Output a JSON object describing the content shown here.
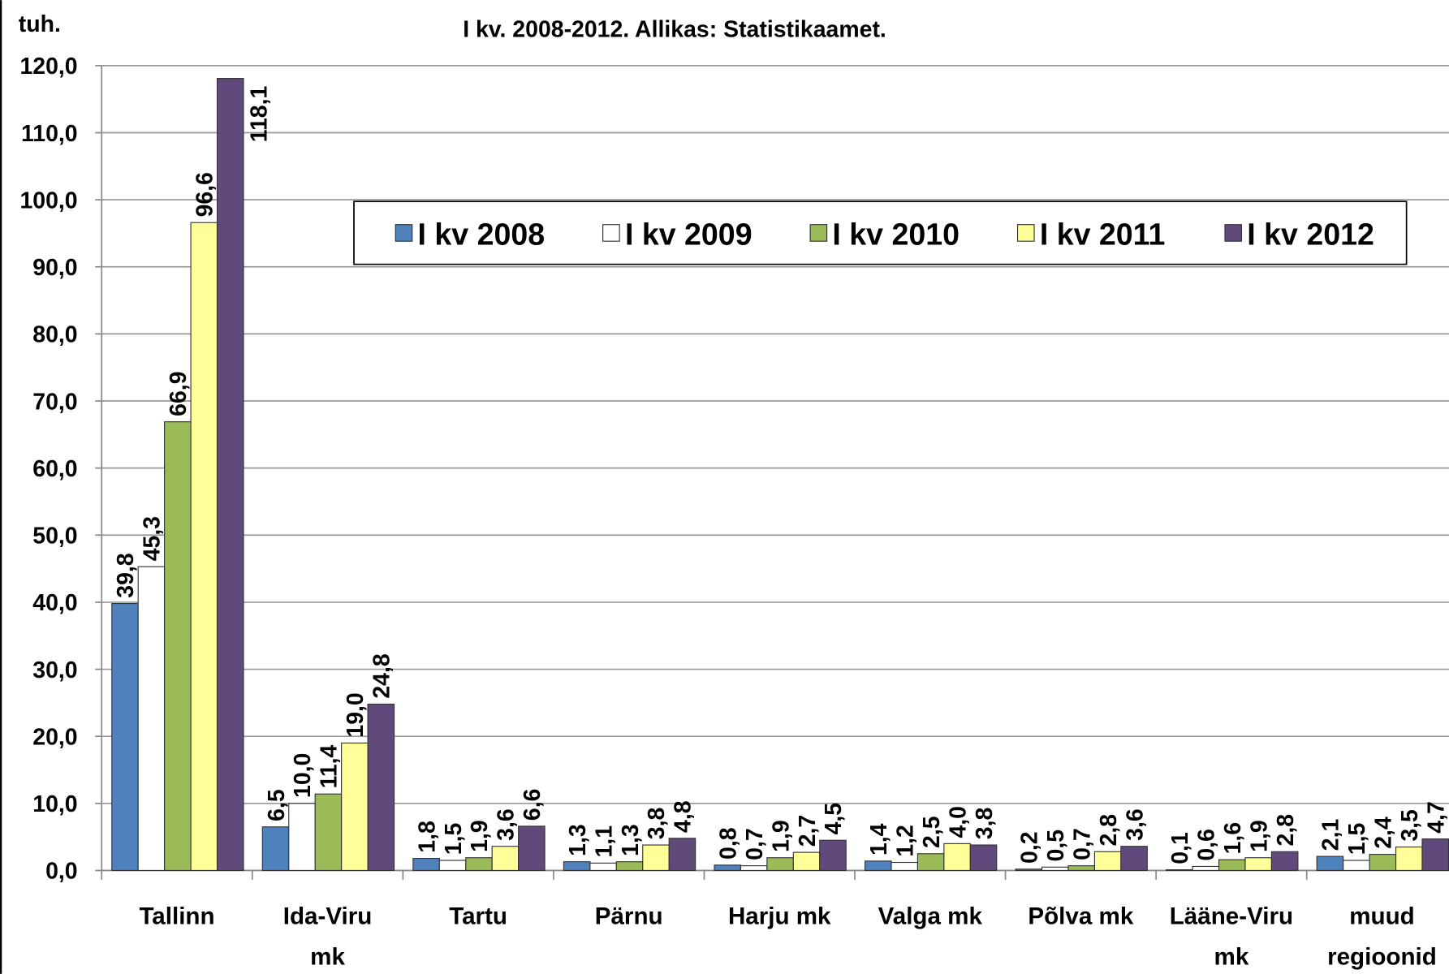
{
  "chart_data": {
    "type": "bar",
    "title": "I kv. 2008-2012.  Allikas: Statistikaamet.",
    "y_label": "tuh.",
    "categories": [
      [
        "Tallinn"
      ],
      [
        "Ida-Viru",
        "mk"
      ],
      [
        "Tartu"
      ],
      [
        "Pärnu"
      ],
      [
        "Harju mk"
      ],
      [
        "Valga mk"
      ],
      [
        "Põlva mk"
      ],
      [
        "Lääne-Viru",
        "mk"
      ],
      [
        "muud",
        "regioonid"
      ]
    ],
    "series": [
      {
        "name": "I kv 2008",
        "color": "#4f81bd",
        "values": [
          39.8,
          6.5,
          1.8,
          1.3,
          0.8,
          1.4,
          0.2,
          0.1,
          2.1
        ],
        "value_labels": [
          "39,8",
          "6,5",
          "1,8",
          "1,3",
          "0,8",
          "1,4",
          "0,2",
          "0,1",
          "2,1"
        ]
      },
      {
        "name": "I kv 2009",
        "color": "#ffffff",
        "values": [
          45.3,
          10.0,
          1.5,
          1.1,
          0.7,
          1.2,
          0.5,
          0.6,
          1.5
        ],
        "value_labels": [
          "45,3",
          "10,0",
          "1,5",
          "1,1",
          "0,7",
          "1,2",
          "0,5",
          "0,6",
          "1,5"
        ]
      },
      {
        "name": "I kv 2010",
        "color": "#9bbb59",
        "values": [
          66.9,
          11.4,
          1.9,
          1.3,
          1.9,
          2.5,
          0.7,
          1.6,
          2.4
        ],
        "value_labels": [
          "66,9",
          "11,4",
          "1,9",
          "1,3",
          "1,9",
          "2,5",
          "0,7",
          "1,6",
          "2,4"
        ]
      },
      {
        "name": "I kv 2011",
        "color": "#ffff99",
        "values": [
          96.6,
          19.0,
          3.6,
          3.8,
          2.7,
          4.0,
          2.8,
          1.9,
          3.5
        ],
        "value_labels": [
          "96,6",
          "19,0",
          "3,6",
          "3,8",
          "2,7",
          "4,0",
          "2,8",
          "1,9",
          "3,5"
        ]
      },
      {
        "name": "I kv 2012",
        "color": "#604a7b",
        "values": [
          118.1,
          24.8,
          6.6,
          4.8,
          4.5,
          3.8,
          3.6,
          2.8,
          4.7
        ],
        "value_labels": [
          "118,1",
          "24,8",
          "6,6",
          "4,8",
          "4,5",
          "3,8",
          "3,6",
          "2,8",
          "4,7"
        ]
      }
    ],
    "ylim": [
      0,
      120
    ],
    "yticks": [
      {
        "value": 0,
        "label": "0,0"
      },
      {
        "value": 10,
        "label": "10,0"
      },
      {
        "value": 20,
        "label": "20,0"
      },
      {
        "value": 30,
        "label": "30,0"
      },
      {
        "value": 40,
        "label": "40,0"
      },
      {
        "value": 50,
        "label": "50,0"
      },
      {
        "value": 60,
        "label": "60,0"
      },
      {
        "value": 70,
        "label": "70,0"
      },
      {
        "value": 80,
        "label": "80,0"
      },
      {
        "value": 90,
        "label": "90,0"
      },
      {
        "value": 100,
        "label": "100,0"
      },
      {
        "value": 110,
        "label": "110,0"
      },
      {
        "value": 120,
        "label": "120,0"
      }
    ],
    "grid": true,
    "legend": "top"
  }
}
